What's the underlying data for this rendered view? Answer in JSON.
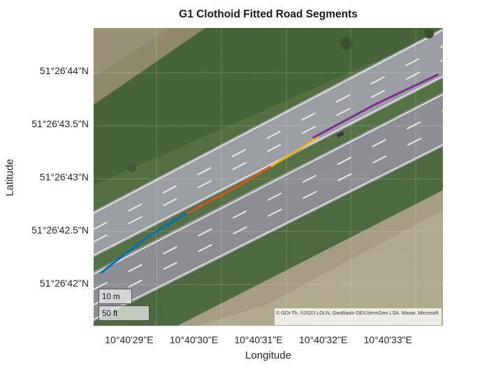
{
  "chart_data": {
    "type": "line",
    "title": "G1 Clothoid Fitted Road Segments",
    "xlabel": "Longitude",
    "ylabel": "Latitude",
    "x_tick_labels": [
      "10°40'29\"E",
      "10°40'30\"E",
      "10°40'31\"E",
      "10°40'32\"E",
      "10°40'33\"E"
    ],
    "y_tick_labels": [
      "51°26'44\"N",
      "51°26'43.5\"N",
      "51°26'43\"N",
      "51°26'42.5\"N",
      "51°26'42\"N"
    ],
    "x_ticks_arcsec": [
      29,
      30,
      31,
      32,
      33
    ],
    "y_ticks_arcsec": [
      44,
      43.5,
      43,
      42.5,
      42
    ],
    "xlim_arcsec": [
      28.45,
      33.85
    ],
    "ylim_arcsec": [
      41.6,
      44.4
    ],
    "basemap": "satellite",
    "series": [
      {
        "color": "#0072BD",
        "x": [
          28.57,
          29.25,
          30.0
        ],
        "y": [
          42.1,
          42.42,
          42.7
        ]
      },
      {
        "color": "#D95319",
        "x": [
          29.9,
          30.7,
          31.2
        ],
        "y": [
          42.66,
          42.92,
          43.1
        ]
      },
      {
        "color": "#EDB120",
        "x": [
          31.2,
          31.6,
          31.92
        ],
        "y": [
          43.1,
          43.25,
          43.37
        ]
      },
      {
        "color": "#7E2F8E",
        "x": [
          31.85,
          32.8,
          33.77
        ],
        "y": [
          43.37,
          43.68,
          43.96
        ]
      }
    ],
    "scale_bar": [
      "10 m",
      "50 ft"
    ],
    "attribution": "© GDI-Th, ©2023 LGLN, GeoBasis-DE/LVermGeo LSA, Maxar, Microsoft"
  }
}
